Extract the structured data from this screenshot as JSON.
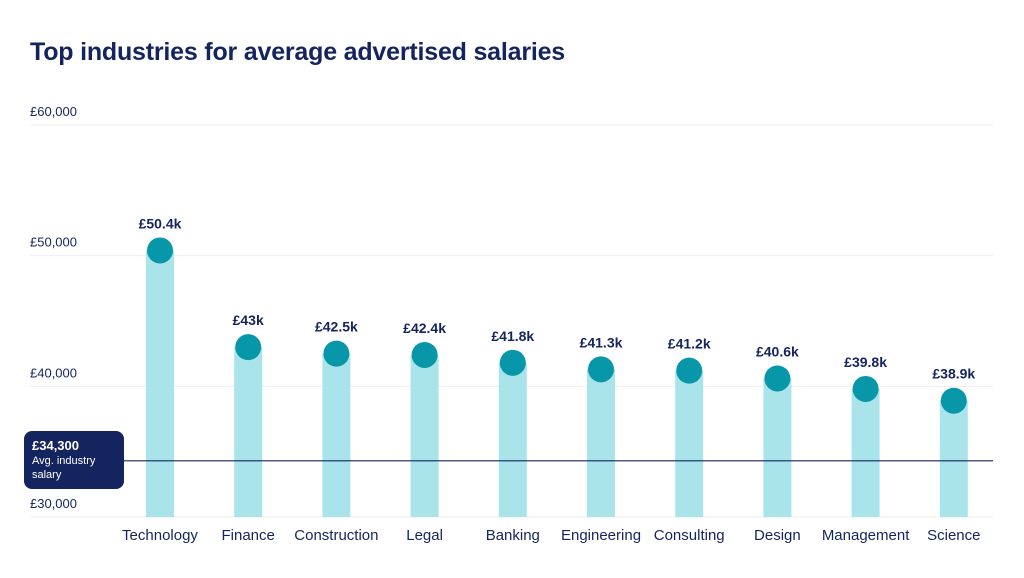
{
  "chart_data": {
    "type": "bar",
    "title": "Top industries for average advertised salaries",
    "categories": [
      "Technology",
      "Finance",
      "Construction",
      "Legal",
      "Banking",
      "Engineering",
      "Consulting",
      "Design",
      "Management",
      "Science"
    ],
    "values": [
      50400,
      43000,
      42500,
      42400,
      41800,
      41300,
      41200,
      40600,
      39800,
      38900
    ],
    "value_labels": [
      "£50.4k",
      "£43k",
      "£42.5k",
      "£42.4k",
      "£41.8k",
      "£41.3k",
      "£41.2k",
      "£40.6k",
      "£39.8k",
      "£38.9k"
    ],
    "ylim": [
      30000,
      60000
    ],
    "yticks": [
      30000,
      40000,
      50000,
      60000
    ],
    "ytick_labels": [
      "£30,000",
      "£40,000",
      "£50,000",
      "£60,000"
    ],
    "grid": true,
    "reference_line": {
      "value": 34300,
      "value_label": "£34,300",
      "label": "Avg. industry salary"
    },
    "colors": {
      "bar": "#a8e4ea",
      "marker": "#0897a8",
      "text": "#14245e",
      "reference_line": "#14245e",
      "grid": "#eeeeee"
    }
  }
}
